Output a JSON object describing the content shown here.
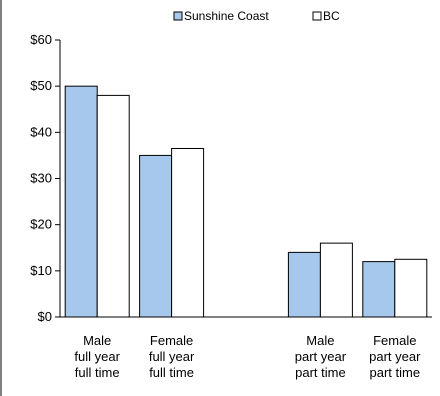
{
  "chart_data": {
    "type": "bar",
    "title": "",
    "xlabel": "",
    "ylabel": "",
    "ylim": [
      0,
      60
    ],
    "yticks": [
      0,
      10,
      20,
      30,
      40,
      50,
      60
    ],
    "ytick_labels": [
      "$0",
      "$10",
      "$20",
      "$30",
      "$40",
      "$50",
      "$60"
    ],
    "categories": [
      [
        "Male",
        "full year",
        "full time"
      ],
      [
        "Female",
        "full year",
        "full time"
      ],
      [
        "",
        "",
        ""
      ],
      [
        "Male",
        "part year",
        "part time"
      ],
      [
        "Female",
        "part year",
        "part time"
      ]
    ],
    "series": [
      {
        "name": "Sunshine Coast",
        "values": [
          50,
          35,
          null,
          14,
          12
        ],
        "color": "#a6c8ec"
      },
      {
        "name": "BC",
        "values": [
          48,
          36.5,
          null,
          16,
          12.5
        ],
        "color": "#ffffff"
      }
    ],
    "legend_position": "top",
    "grid": false
  }
}
